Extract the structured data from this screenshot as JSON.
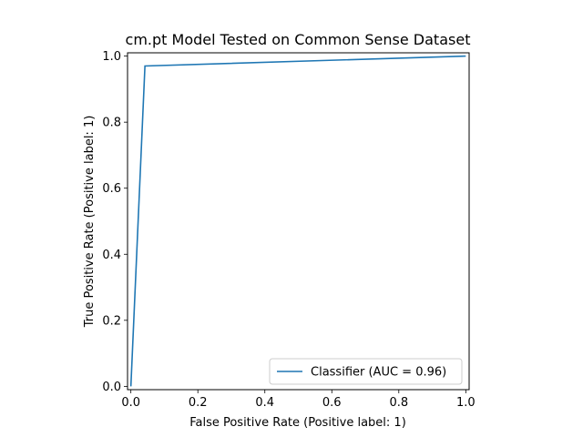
{
  "chart_data": {
    "type": "line",
    "title": "cm.pt Model Tested on Common Sense Dataset",
    "xlabel": "False Positive Rate (Positive label: 1)",
    "ylabel": "True Positive Rate (Positive label: 1)",
    "xlim": [
      -0.01,
      1.01
    ],
    "ylim": [
      -0.01,
      1.01
    ],
    "x_ticks": [
      "0.0",
      "0.2",
      "0.4",
      "0.6",
      "0.8",
      "1.0"
    ],
    "y_ticks": [
      "0.0",
      "0.2",
      "0.4",
      "0.6",
      "0.8",
      "1.0"
    ],
    "grid": false,
    "legend_position": "lower-right",
    "series": [
      {
        "name": "Classifier (AUC = 0.96)",
        "color": "#1f77b4",
        "x": [
          0.0,
          0.042,
          1.0
        ],
        "y": [
          0.0,
          0.97,
          1.0
        ]
      }
    ]
  }
}
